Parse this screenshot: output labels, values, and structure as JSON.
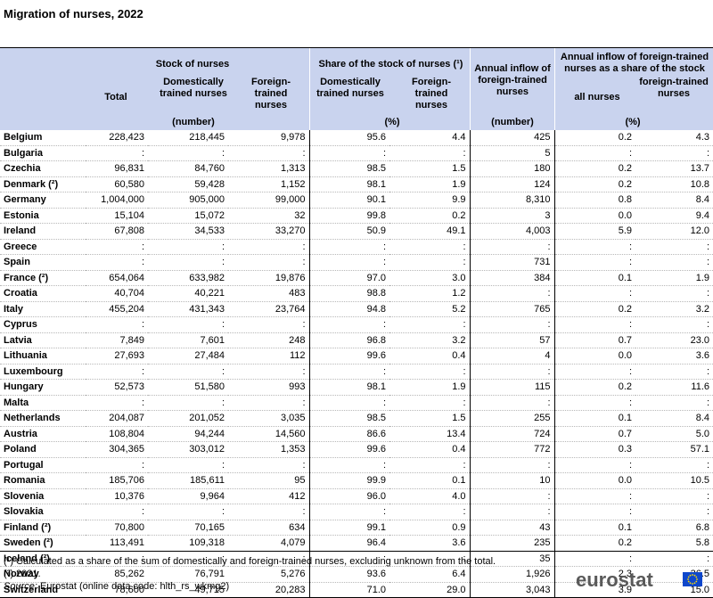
{
  "title": "Migration of nurses, 2022",
  "header": {
    "stock_group": "Stock of nurses",
    "share_group": "Share of the stock of nurses (¹)",
    "annual_inflow": "Annual inflow of foreign-trained nurses",
    "annual_share_group": "Annual inflow of foreign-trained nurses as a share of the stock",
    "total": "Total",
    "domestic": "Domestically trained nurses",
    "foreign": "Foreign-trained nurses",
    "share_domestic": "Domestically trained nurses",
    "share_foreign": "Foreign-trained nurses",
    "all_nurses": "all nurses",
    "foreign_trained": "foreign-trained nurses",
    "unit_number": "(number)",
    "unit_percent": "(%)",
    "unit_number2": "(number)",
    "unit_percent2": "(%)"
  },
  "rows": [
    {
      "country": "Belgium",
      "total": "228,423",
      "domestic": "218,445",
      "foreign": "9,978",
      "share_dom": "95.6",
      "share_for": "4.4",
      "inflow": "425",
      "all": "0.2",
      "ft": "4.3"
    },
    {
      "country": "Bulgaria",
      "total": ":",
      "domestic": ":",
      "foreign": ":",
      "share_dom": ":",
      "share_for": ":",
      "inflow": "5",
      "all": ":",
      "ft": ":"
    },
    {
      "country": "Czechia",
      "total": "96,831",
      "domestic": "84,760",
      "foreign": "1,313",
      "share_dom": "98.5",
      "share_for": "1.5",
      "inflow": "180",
      "all": "0.2",
      "ft": "13.7"
    },
    {
      "country": "Denmark (²)",
      "total": "60,580",
      "domestic": "59,428",
      "foreign": "1,152",
      "share_dom": "98.1",
      "share_for": "1.9",
      "inflow": "124",
      "all": "0.2",
      "ft": "10.8"
    },
    {
      "country": "Germany",
      "total": "1,004,000",
      "domestic": "905,000",
      "foreign": "99,000",
      "share_dom": "90.1",
      "share_for": "9.9",
      "inflow": "8,310",
      "all": "0.8",
      "ft": "8.4"
    },
    {
      "country": "Estonia",
      "total": "15,104",
      "domestic": "15,072",
      "foreign": "32",
      "share_dom": "99.8",
      "share_for": "0.2",
      "inflow": "3",
      "all": "0.0",
      "ft": "9.4"
    },
    {
      "country": "Ireland",
      "total": "67,808",
      "domestic": "34,533",
      "foreign": "33,270",
      "share_dom": "50.9",
      "share_for": "49.1",
      "inflow": "4,003",
      "all": "5.9",
      "ft": "12.0"
    },
    {
      "country": "Greece",
      "total": ":",
      "domestic": ":",
      "foreign": ":",
      "share_dom": ":",
      "share_for": ":",
      "inflow": ":",
      "all": ":",
      "ft": ":"
    },
    {
      "country": "Spain",
      "total": ":",
      "domestic": ":",
      "foreign": ":",
      "share_dom": ":",
      "share_for": ":",
      "inflow": "731",
      "all": ":",
      "ft": ":"
    },
    {
      "country": "France (²)",
      "total": "654,064",
      "domestic": "633,982",
      "foreign": "19,876",
      "share_dom": "97.0",
      "share_for": "3.0",
      "inflow": "384",
      "all": "0.1",
      "ft": "1.9"
    },
    {
      "country": "Croatia",
      "total": "40,704",
      "domestic": "40,221",
      "foreign": "483",
      "share_dom": "98.8",
      "share_for": "1.2",
      "inflow": ":",
      "all": ":",
      "ft": ":"
    },
    {
      "country": "Italy",
      "total": "455,204",
      "domestic": "431,343",
      "foreign": "23,764",
      "share_dom": "94.8",
      "share_for": "5.2",
      "inflow": "765",
      "all": "0.2",
      "ft": "3.2"
    },
    {
      "country": "Cyprus",
      "total": ":",
      "domestic": ":",
      "foreign": ":",
      "share_dom": ":",
      "share_for": ":",
      "inflow": ":",
      "all": ":",
      "ft": ":"
    },
    {
      "country": "Latvia",
      "total": "7,849",
      "domestic": "7,601",
      "foreign": "248",
      "share_dom": "96.8",
      "share_for": "3.2",
      "inflow": "57",
      "all": "0.7",
      "ft": "23.0"
    },
    {
      "country": "Lithuania",
      "total": "27,693",
      "domestic": "27,484",
      "foreign": "112",
      "share_dom": "99.6",
      "share_for": "0.4",
      "inflow": "4",
      "all": "0.0",
      "ft": "3.6"
    },
    {
      "country": "Luxembourg",
      "total": ":",
      "domestic": ":",
      "foreign": ":",
      "share_dom": ":",
      "share_for": ":",
      "inflow": ":",
      "all": ":",
      "ft": ":"
    },
    {
      "country": "Hungary",
      "total": "52,573",
      "domestic": "51,580",
      "foreign": "993",
      "share_dom": "98.1",
      "share_for": "1.9",
      "inflow": "115",
      "all": "0.2",
      "ft": "11.6"
    },
    {
      "country": "Malta",
      "total": ":",
      "domestic": ":",
      "foreign": ":",
      "share_dom": ":",
      "share_for": ":",
      "inflow": ":",
      "all": ":",
      "ft": ":"
    },
    {
      "country": "Netherlands",
      "total": "204,087",
      "domestic": "201,052",
      "foreign": "3,035",
      "share_dom": "98.5",
      "share_for": "1.5",
      "inflow": "255",
      "all": "0.1",
      "ft": "8.4"
    },
    {
      "country": "Austria",
      "total": "108,804",
      "domestic": "94,244",
      "foreign": "14,560",
      "share_dom": "86.6",
      "share_for": "13.4",
      "inflow": "724",
      "all": "0.7",
      "ft": "5.0"
    },
    {
      "country": "Poland",
      "total": "304,365",
      "domestic": "303,012",
      "foreign": "1,353",
      "share_dom": "99.6",
      "share_for": "0.4",
      "inflow": "772",
      "all": "0.3",
      "ft": "57.1"
    },
    {
      "country": "Portugal",
      "total": ":",
      "domestic": ":",
      "foreign": ":",
      "share_dom": ":",
      "share_for": ":",
      "inflow": ":",
      "all": ":",
      "ft": ":"
    },
    {
      "country": "Romania",
      "total": "185,706",
      "domestic": "185,611",
      "foreign": "95",
      "share_dom": "99.9",
      "share_for": "0.1",
      "inflow": "10",
      "all": "0.0",
      "ft": "10.5"
    },
    {
      "country": "Slovenia",
      "total": "10,376",
      "domestic": "9,964",
      "foreign": "412",
      "share_dom": "96.0",
      "share_for": "4.0",
      "inflow": ":",
      "all": ":",
      "ft": ":"
    },
    {
      "country": "Slovakia",
      "total": ":",
      "domestic": ":",
      "foreign": ":",
      "share_dom": ":",
      "share_for": ":",
      "inflow": ":",
      "all": ":",
      "ft": ":"
    },
    {
      "country": "Finland (²)",
      "total": "70,800",
      "domestic": "70,165",
      "foreign": "634",
      "share_dom": "99.1",
      "share_for": "0.9",
      "inflow": "43",
      "all": "0.1",
      "ft": "6.8"
    },
    {
      "country": "Sweden (²)",
      "total": "113,491",
      "domestic": "109,318",
      "foreign": "4,079",
      "share_dom": "96.4",
      "share_for": "3.6",
      "inflow": "235",
      "all": "0.2",
      "ft": "5.8"
    },
    {
      "country": "Iceland (²)",
      "total": ":",
      "domestic": ":",
      "foreign": ":",
      "share_dom": ":",
      "share_for": ":",
      "inflow": "35",
      "all": ":",
      "ft": ":"
    },
    {
      "country": "Norway",
      "total": "85,262",
      "domestic": "76,791",
      "foreign": "5,276",
      "share_dom": "93.6",
      "share_for": "6.4",
      "inflow": "1,926",
      "all": "2.3",
      "ft": "36.5"
    },
    {
      "country": "Switzerland",
      "total": "78,600",
      "domestic": "49,715",
      "foreign": "20,283",
      "share_dom": "71.0",
      "share_for": "29.0",
      "inflow": "3,043",
      "all": "3.9",
      "ft": "15.0"
    }
  ],
  "footnotes": {
    "note1": "(¹) Calculated as a share of the sum of domestically and foreign-trained nurses, excluding unknown from the total.",
    "note2": "(²) 2021.",
    "source_label": "Source:",
    "source_text": " Eurostat (online data code: hlth_rs_wkmg2)"
  },
  "logo": {
    "text": "eurostat",
    "flag_color": "#0e47cb",
    "star_color": "#ffdd00"
  },
  "colors": {
    "header_bg": "#c9d3ee"
  }
}
